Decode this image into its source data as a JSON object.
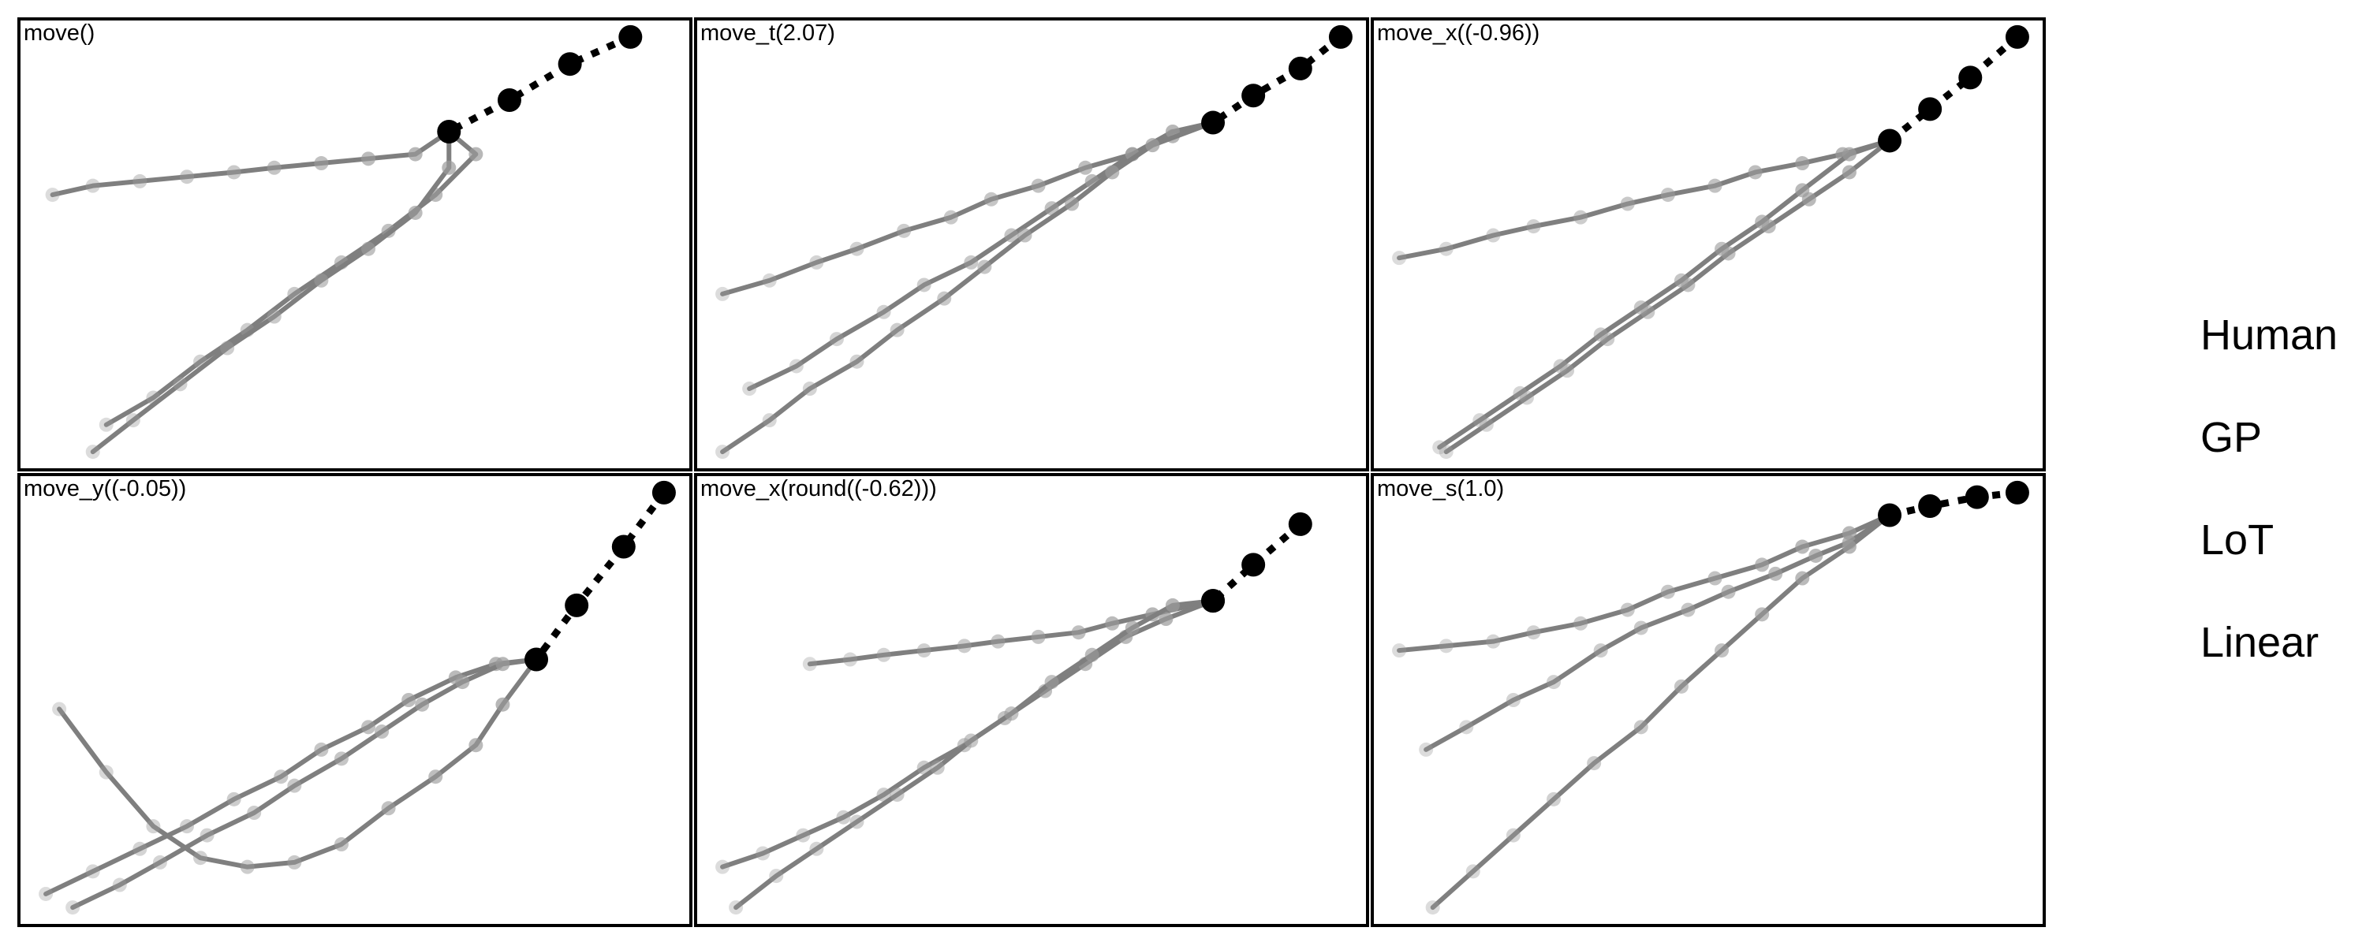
{
  "chart_data": [
    {
      "type": "line",
      "title": "move()",
      "xlim": [
        0,
        100
      ],
      "ylim": [
        0,
        100
      ],
      "observed": [
        [
          91,
          96
        ],
        [
          82,
          90
        ],
        [
          73,
          82
        ],
        [
          64,
          75
        ]
      ],
      "series": [
        {
          "points": [
            [
              5,
              61
            ],
            [
              11,
              63
            ],
            [
              18,
              64
            ],
            [
              25,
              65
            ],
            [
              32,
              66
            ],
            [
              38,
              67
            ],
            [
              45,
              68
            ],
            [
              52,
              69
            ],
            [
              59,
              70
            ],
            [
              64,
              75
            ]
          ]
        },
        {
          "points": [
            [
              13,
              10
            ],
            [
              20,
              16
            ],
            [
              27,
              24
            ],
            [
              34,
              31
            ],
            [
              41,
              39
            ],
            [
              48,
              46
            ],
            [
              55,
              53
            ],
            [
              62,
              61
            ],
            [
              68,
              70
            ],
            [
              64,
              75
            ]
          ]
        },
        {
          "points": [
            [
              11,
              4
            ],
            [
              17,
              11
            ],
            [
              24,
              19
            ],
            [
              31,
              27
            ],
            [
              38,
              34
            ],
            [
              45,
              42
            ],
            [
              52,
              49
            ],
            [
              59,
              57
            ],
            [
              64,
              67
            ],
            [
              64,
              75
            ]
          ]
        }
      ]
    },
    {
      "type": "line",
      "title": "move_t(2.07)",
      "xlim": [
        0,
        100
      ],
      "ylim": [
        0,
        100
      ],
      "observed": [
        [
          96,
          96
        ],
        [
          90,
          89
        ],
        [
          83,
          83
        ],
        [
          77,
          77
        ]
      ],
      "series": [
        {
          "points": [
            [
              4,
              39
            ],
            [
              11,
              42
            ],
            [
              18,
              46
            ],
            [
              24,
              49
            ],
            [
              31,
              53
            ],
            [
              38,
              56
            ],
            [
              44,
              60
            ],
            [
              51,
              63
            ],
            [
              58,
              67
            ],
            [
              65,
              70
            ],
            [
              71,
              74
            ],
            [
              77,
              77
            ]
          ]
        },
        {
          "points": [
            [
              8,
              18
            ],
            [
              15,
              23
            ],
            [
              21,
              29
            ],
            [
              28,
              35
            ],
            [
              34,
              41
            ],
            [
              41,
              46
            ],
            [
              47,
              52
            ],
            [
              53,
              58
            ],
            [
              59,
              64
            ],
            [
              65,
              70
            ],
            [
              71,
              75
            ],
            [
              77,
              77
            ]
          ]
        },
        {
          "points": [
            [
              4,
              4
            ],
            [
              11,
              11
            ],
            [
              17,
              18
            ],
            [
              24,
              24
            ],
            [
              30,
              31
            ],
            [
              37,
              38
            ],
            [
              43,
              45
            ],
            [
              49,
              52
            ],
            [
              56,
              59
            ],
            [
              62,
              66
            ],
            [
              68,
              72
            ],
            [
              77,
              77
            ]
          ]
        }
      ]
    },
    {
      "type": "line",
      "title": "move_x((-0.96))",
      "xlim": [
        0,
        100
      ],
      "ylim": [
        0,
        100
      ],
      "observed": [
        [
          96,
          96
        ],
        [
          89,
          87
        ],
        [
          83,
          80
        ],
        [
          77,
          73
        ]
      ],
      "series": [
        {
          "points": [
            [
              4,
              47
            ],
            [
              11,
              49
            ],
            [
              18,
              52
            ],
            [
              24,
              54
            ],
            [
              31,
              56
            ],
            [
              38,
              59
            ],
            [
              44,
              61
            ],
            [
              51,
              63
            ],
            [
              57,
              66
            ],
            [
              64,
              68
            ],
            [
              70,
              70
            ],
            [
              77,
              73
            ]
          ]
        },
        {
          "points": [
            [
              11,
              4
            ],
            [
              17,
              10
            ],
            [
              23,
              16
            ],
            [
              29,
              22
            ],
            [
              35,
              29
            ],
            [
              41,
              35
            ],
            [
              47,
              41
            ],
            [
              53,
              48
            ],
            [
              59,
              54
            ],
            [
              65,
              60
            ],
            [
              71,
              66
            ],
            [
              77,
              73
            ]
          ]
        },
        {
          "points": [
            [
              10,
              5
            ],
            [
              16,
              11
            ],
            [
              22,
              17
            ],
            [
              28,
              23
            ],
            [
              34,
              30
            ],
            [
              40,
              36
            ],
            [
              46,
              42
            ],
            [
              52,
              49
            ],
            [
              58,
              55
            ],
            [
              64,
              62
            ],
            [
              71,
              70
            ],
            [
              77,
              73
            ]
          ]
        }
      ]
    },
    {
      "type": "line",
      "title": "move_y((-0.05))",
      "xlim": [
        0,
        100
      ],
      "ylim": [
        0,
        100
      ],
      "observed": [
        [
          96,
          96
        ],
        [
          90,
          84
        ],
        [
          83,
          71
        ],
        [
          77,
          59
        ]
      ],
      "series": [
        {
          "points": [
            [
              6,
              48
            ],
            [
              13,
              34
            ],
            [
              20,
              22
            ],
            [
              27,
              15
            ],
            [
              34,
              13
            ],
            [
              41,
              14
            ],
            [
              48,
              18
            ],
            [
              55,
              26
            ],
            [
              62,
              33
            ],
            [
              68,
              40
            ],
            [
              72,
              49
            ],
            [
              77,
              59
            ]
          ]
        },
        {
          "points": [
            [
              4,
              7
            ],
            [
              11,
              12
            ],
            [
              18,
              17
            ],
            [
              25,
              22
            ],
            [
              32,
              28
            ],
            [
              39,
              33
            ],
            [
              45,
              39
            ],
            [
              52,
              44
            ],
            [
              58,
              50
            ],
            [
              65,
              55
            ],
            [
              71,
              58
            ],
            [
              77,
              59
            ]
          ]
        },
        {
          "points": [
            [
              8,
              4
            ],
            [
              15,
              9
            ],
            [
              21,
              14
            ],
            [
              28,
              20
            ],
            [
              35,
              25
            ],
            [
              41,
              31
            ],
            [
              48,
              37
            ],
            [
              54,
              43
            ],
            [
              60,
              49
            ],
            [
              66,
              54
            ],
            [
              72,
              58
            ],
            [
              77,
              59
            ]
          ]
        }
      ]
    },
    {
      "type": "line",
      "title": "move_x(round((-0.62)))",
      "xlim": [
        0,
        100
      ],
      "ylim": [
        0,
        100
      ],
      "observed": [
        [
          90,
          89
        ],
        [
          83,
          80
        ],
        [
          77,
          72
        ],
        [
          77,
          72
        ]
      ],
      "series": [
        {
          "points": [
            [
              17,
              58
            ],
            [
              23,
              59
            ],
            [
              28,
              60
            ],
            [
              34,
              61
            ],
            [
              40,
              62
            ],
            [
              45,
              63
            ],
            [
              51,
              64
            ],
            [
              57,
              65
            ],
            [
              62,
              67
            ],
            [
              68,
              69
            ],
            [
              77,
              72
            ]
          ]
        },
        {
          "points": [
            [
              4,
              13
            ],
            [
              10,
              16
            ],
            [
              16,
              20
            ],
            [
              22,
              24
            ],
            [
              28,
              29
            ],
            [
              34,
              35
            ],
            [
              40,
              40
            ],
            [
              46,
              46
            ],
            [
              52,
              52
            ],
            [
              58,
              58
            ],
            [
              64,
              64
            ],
            [
              70,
              68
            ],
            [
              77,
              72
            ]
          ]
        },
        {
          "points": [
            [
              6,
              4
            ],
            [
              12,
              11
            ],
            [
              18,
              17
            ],
            [
              24,
              23
            ],
            [
              30,
              29
            ],
            [
              36,
              35
            ],
            [
              41,
              41
            ],
            [
              47,
              47
            ],
            [
              53,
              54
            ],
            [
              59,
              60
            ],
            [
              65,
              66
            ],
            [
              71,
              71
            ],
            [
              77,
              72
            ]
          ]
        }
      ]
    },
    {
      "type": "line",
      "title": "move_s(1.0)",
      "xlim": [
        0,
        100
      ],
      "ylim": [
        0,
        100
      ],
      "observed": [
        [
          96,
          96
        ],
        [
          90,
          95
        ],
        [
          83,
          93
        ],
        [
          77,
          91
        ]
      ],
      "series": [
        {
          "points": [
            [
              4,
              61
            ],
            [
              11,
              62
            ],
            [
              18,
              63
            ],
            [
              24,
              65
            ],
            [
              31,
              67
            ],
            [
              38,
              70
            ],
            [
              44,
              74
            ],
            [
              51,
              77
            ],
            [
              58,
              80
            ],
            [
              64,
              84
            ],
            [
              71,
              87
            ],
            [
              77,
              91
            ]
          ]
        },
        {
          "points": [
            [
              8,
              39
            ],
            [
              14,
              44
            ],
            [
              21,
              50
            ],
            [
              27,
              54
            ],
            [
              34,
              61
            ],
            [
              40,
              66
            ],
            [
              47,
              70
            ],
            [
              53,
              74
            ],
            [
              60,
              78
            ],
            [
              66,
              82
            ],
            [
              71,
              85
            ],
            [
              77,
              91
            ]
          ]
        },
        {
          "points": [
            [
              9,
              4
            ],
            [
              15,
              12
            ],
            [
              21,
              20
            ],
            [
              27,
              28
            ],
            [
              33,
              36
            ],
            [
              40,
              44
            ],
            [
              46,
              53
            ],
            [
              52,
              61
            ],
            [
              58,
              69
            ],
            [
              64,
              77
            ],
            [
              71,
              84
            ],
            [
              77,
              91
            ]
          ]
        }
      ]
    }
  ],
  "legend": [
    "Human",
    "GP",
    "LoT",
    "Linear"
  ]
}
